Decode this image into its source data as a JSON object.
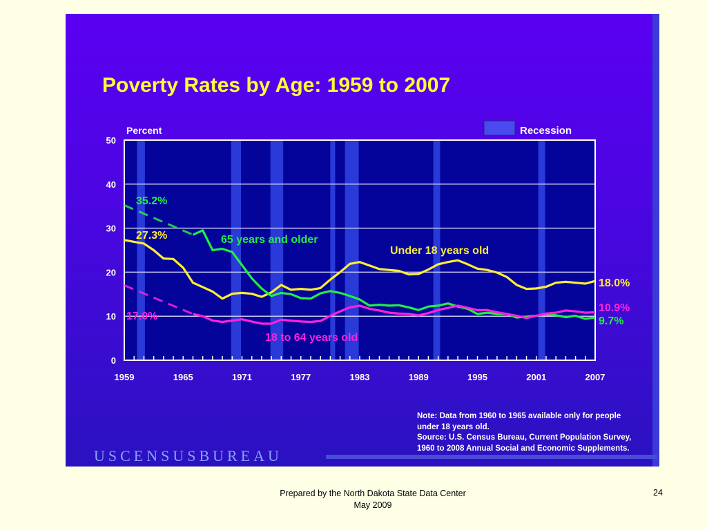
{
  "footer": {
    "line1": "Prepared by the North Dakota State Data Center",
    "line2": "May 2009",
    "page_number": "24"
  },
  "note": {
    "line1": "Note:  Data from 1960 to 1965 available only for people",
    "line2": "under 18 years old.",
    "line3": "Source:  U.S. Census Bureau, Current Population Survey,",
    "line4": "1960 to 2008 Annual Social and Economic Supplements."
  },
  "logo": "USCENSUSBUREAU",
  "chart_data": {
    "type": "line",
    "title": "Poverty Rates by Age:  1959 to 2007",
    "ylabel": "Percent",
    "xlabel": "",
    "ylim": [
      0,
      50
    ],
    "xlim": [
      1959,
      2007
    ],
    "yticks": [
      "0",
      "10",
      "20",
      "30",
      "40",
      "50"
    ],
    "xticks": [
      "1959",
      "1965",
      "1971",
      "1977",
      "1983",
      "1989",
      "1995",
      "2001",
      "2007"
    ],
    "legend": {
      "label": "Recession",
      "placement": "top-right",
      "color": "#4a4af0"
    },
    "recessions": [
      [
        1960.3,
        1961.1
      ],
      [
        1969.9,
        1970.9
      ],
      [
        1973.9,
        1975.2
      ],
      [
        1980.0,
        1980.5
      ],
      [
        1981.5,
        1982.9
      ],
      [
        1990.5,
        1991.2
      ],
      [
        2001.2,
        2001.9
      ]
    ],
    "series": [
      {
        "name": "Under 18 years old",
        "color": "#ffee33",
        "start_year": 1959,
        "values": [
          27.3,
          26.9,
          26.5,
          25.0,
          23.1,
          23.0,
          21.0,
          17.6,
          16.6,
          15.6,
          14.0,
          15.1,
          15.3,
          15.1,
          14.4,
          15.4,
          17.1,
          16.0,
          16.2,
          16.0,
          16.4,
          18.3,
          20.0,
          21.9,
          22.3,
          21.5,
          20.7,
          20.5,
          20.3,
          19.5,
          19.6,
          20.6,
          21.8,
          22.3,
          22.7,
          21.8,
          20.8,
          20.5,
          19.9,
          18.9,
          17.1,
          16.2,
          16.3,
          16.7,
          17.6,
          17.8,
          17.6,
          17.4,
          18.0
        ],
        "start_label": "27.3%",
        "end_label": "18.0%"
      },
      {
        "name": "65 years and older",
        "color": "#22ee44",
        "start_year": 1966,
        "dashed_from": [
          1959,
          35.2
        ],
        "values": [
          28.5,
          29.5,
          25.0,
          25.3,
          24.6,
          21.6,
          18.6,
          16.3,
          14.6,
          15.3,
          15.0,
          14.1,
          14.0,
          15.2,
          15.7,
          15.3,
          14.6,
          13.8,
          12.4,
          12.6,
          12.4,
          12.5,
          12.0,
          11.4,
          12.2,
          12.4,
          12.9,
          12.2,
          11.7,
          10.5,
          10.8,
          10.5,
          10.5,
          9.7,
          9.9,
          10.1,
          10.4,
          10.2,
          9.8,
          10.1,
          9.4,
          9.7
        ],
        "start_label": "35.2%",
        "end_label": "9.7%"
      },
      {
        "name": "18 to 64 years old",
        "color": "#ff22dd",
        "start_year": 1966,
        "dashed_from": [
          1959,
          17.0
        ],
        "values": [
          10.5,
          10.0,
          9.0,
          8.7,
          9.0,
          9.3,
          8.8,
          8.3,
          8.3,
          9.2,
          9.0,
          8.8,
          8.7,
          8.9,
          10.1,
          11.1,
          12.0,
          12.4,
          11.7,
          11.3,
          10.8,
          10.6,
          10.5,
          10.2,
          10.7,
          11.4,
          11.9,
          12.4,
          11.9,
          11.4,
          11.4,
          10.9,
          10.5,
          10.1,
          9.6,
          10.1,
          10.6,
          10.8,
          11.3,
          11.1,
          10.8,
          10.9
        ],
        "start_label": "17.0%",
        "end_label": "10.9%"
      }
    ]
  }
}
